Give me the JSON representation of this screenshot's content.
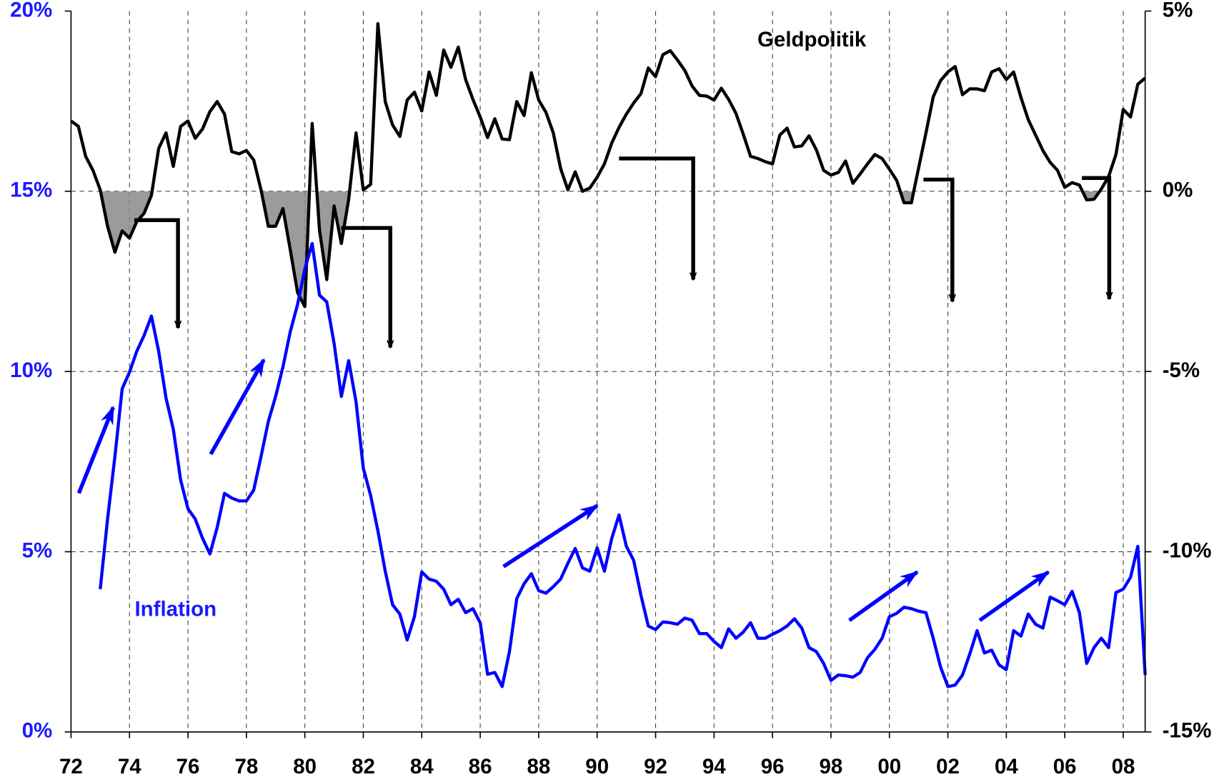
{
  "chart_data": {
    "type": "line",
    "x": [
      1972,
      1972.25,
      1972.5,
      1972.75,
      1973,
      1973.25,
      1973.5,
      1973.75,
      1974,
      1974.25,
      1974.5,
      1974.75,
      1975,
      1975.25,
      1975.5,
      1975.75,
      1976,
      1976.25,
      1976.5,
      1976.75,
      1977,
      1977.25,
      1977.5,
      1977.75,
      1978,
      1978.25,
      1978.5,
      1978.75,
      1979,
      1979.25,
      1979.5,
      1979.75,
      1980,
      1980.25,
      1980.5,
      1980.75,
      1981,
      1981.25,
      1981.5,
      1981.75,
      1982,
      1982.25,
      1982.5,
      1982.75,
      1983,
      1983.25,
      1983.5,
      1983.75,
      1984,
      1984.25,
      1984.5,
      1984.75,
      1985,
      1985.25,
      1985.5,
      1985.75,
      1986,
      1986.25,
      1986.5,
      1986.75,
      1987,
      1987.25,
      1987.5,
      1987.75,
      1988,
      1988.25,
      1988.5,
      1988.75,
      1989,
      1989.25,
      1989.5,
      1989.75,
      1990,
      1990.25,
      1990.5,
      1990.75,
      1991,
      1991.25,
      1991.5,
      1991.75,
      1992,
      1992.25,
      1992.5,
      1992.75,
      1993,
      1993.25,
      1993.5,
      1993.75,
      1994,
      1994.25,
      1994.5,
      1994.75,
      1995,
      1995.25,
      1995.5,
      1995.75,
      1996,
      1996.25,
      1996.5,
      1996.75,
      1997,
      1997.25,
      1997.5,
      1997.75,
      1998,
      1998.25,
      1998.5,
      1998.75,
      1999,
      1999.25,
      1999.5,
      1999.75,
      2000,
      2000.25,
      2000.5,
      2000.75,
      2001,
      2001.25,
      2001.5,
      2001.75,
      2002,
      2002.25,
      2002.5,
      2002.75,
      2003,
      2003.25,
      2003.5,
      2003.75,
      2004,
      2004.25,
      2004.5,
      2004.75,
      2005,
      2005.25,
      2005.5,
      2005.75,
      2006,
      2006.25,
      2006.5,
      2006.75,
      2007,
      2007.25,
      2007.5,
      2007.75,
      2008,
      2008.25,
      2008.5,
      2008.75
    ],
    "series": [
      {
        "name": "Geldpolitik",
        "color": "#000000",
        "axis": "y2",
        "values": [
          1.95,
          1.8,
          0.97,
          0.58,
          0.04,
          -0.97,
          -1.69,
          -1.1,
          -1.3,
          -0.84,
          -0.61,
          -0.11,
          1.19,
          1.62,
          0.69,
          1.8,
          1.95,
          1.47,
          1.73,
          2.21,
          2.49,
          2.14,
          1.1,
          1.04,
          1.13,
          0.87,
          0.04,
          -0.97,
          -0.97,
          -0.48,
          -1.62,
          -2.81,
          -3.2,
          1.88,
          -1.08,
          -2.45,
          -0.41,
          -1.45,
          -0.22,
          1.62,
          0.04,
          0.19,
          4.65,
          2.49,
          1.84,
          1.52,
          2.53,
          2.75,
          2.23,
          3.31,
          2.66,
          3.92,
          3.44,
          4.0,
          3.1,
          2.55,
          2.06,
          1.49,
          2.01,
          1.45,
          1.43,
          2.49,
          2.1,
          3.29,
          2.53,
          2.19,
          1.62,
          0.63,
          0.04,
          0.54,
          0.0,
          0.09,
          0.39,
          0.76,
          1.34,
          1.77,
          2.14,
          2.45,
          2.71,
          3.42,
          3.18,
          3.79,
          3.9,
          3.64,
          3.35,
          2.92,
          2.66,
          2.64,
          2.53,
          2.86,
          2.55,
          2.16,
          1.58,
          0.97,
          0.91,
          0.82,
          0.76,
          1.56,
          1.75,
          1.23,
          1.26,
          1.54,
          1.15,
          0.58,
          0.45,
          0.52,
          0.84,
          0.22,
          0.48,
          0.76,
          1.02,
          0.91,
          0.61,
          0.3,
          -0.32,
          -0.32,
          0.65,
          1.62,
          2.62,
          3.07,
          3.31,
          3.46,
          2.68,
          2.84,
          2.84,
          2.79,
          3.31,
          3.4,
          3.1,
          3.31,
          2.6,
          1.99,
          1.56,
          1.13,
          0.8,
          0.58,
          0.11,
          0.24,
          0.17,
          -0.24,
          -0.22,
          0.06,
          0.41,
          1.02,
          2.27,
          2.06,
          2.97,
          3.14
        ]
      },
      {
        "name": "Inflation",
        "color": "#0000ff",
        "values": [
          null,
          null,
          null,
          null,
          3.96,
          5.91,
          7.64,
          9.52,
          9.98,
          10.56,
          11.0,
          11.54,
          10.56,
          9.26,
          8.4,
          6.99,
          6.19,
          5.91,
          5.37,
          4.94,
          5.67,
          6.62,
          6.49,
          6.41,
          6.41,
          6.71,
          7.64,
          8.61,
          9.31,
          10.13,
          11.1,
          11.86,
          12.84,
          13.55,
          12.12,
          11.93,
          10.78,
          9.31,
          10.3,
          9.16,
          7.32,
          6.56,
          5.58,
          4.46,
          3.53,
          3.27,
          2.55,
          3.2,
          4.44,
          4.24,
          4.18,
          3.96,
          3.53,
          3.68,
          3.31,
          3.42,
          3.03,
          1.6,
          1.65,
          1.26,
          2.23,
          3.7,
          4.11,
          4.39,
          3.92,
          3.85,
          4.03,
          4.24,
          4.68,
          5.09,
          4.55,
          4.46,
          5.11,
          4.46,
          5.37,
          6.02,
          5.15,
          4.76,
          3.79,
          2.94,
          2.84,
          3.05,
          3.03,
          2.99,
          3.16,
          3.1,
          2.73,
          2.73,
          2.51,
          2.34,
          2.86,
          2.6,
          2.77,
          3.03,
          2.6,
          2.6,
          2.71,
          2.81,
          2.94,
          3.14,
          2.88,
          2.34,
          2.23,
          1.9,
          1.43,
          1.58,
          1.56,
          1.52,
          1.65,
          2.06,
          2.29,
          2.6,
          3.2,
          3.29,
          3.46,
          3.42,
          3.35,
          3.31,
          2.6,
          1.8,
          1.26,
          1.3,
          1.58,
          2.16,
          2.81,
          2.19,
          2.27,
          1.86,
          1.73,
          2.81,
          2.66,
          3.27,
          2.99,
          2.88,
          3.74,
          3.64,
          3.53,
          3.9,
          3.31,
          1.9,
          2.34,
          2.6,
          2.34,
          3.87,
          3.96,
          4.29,
          5.15,
          1.58
        ]
      }
    ],
    "xlim": [
      1972,
      2008.75
    ],
    "xticks": [
      {
        "value": 1972,
        "label": "72"
      },
      {
        "value": 1974,
        "label": "74"
      },
      {
        "value": 1976,
        "label": "76"
      },
      {
        "value": 1978,
        "label": "78"
      },
      {
        "value": 1980,
        "label": "80"
      },
      {
        "value": 1982,
        "label": "82"
      },
      {
        "value": 1984,
        "label": "84"
      },
      {
        "value": 1986,
        "label": "86"
      },
      {
        "value": 1988,
        "label": "88"
      },
      {
        "value": 1990,
        "label": "90"
      },
      {
        "value": 1992,
        "label": "92"
      },
      {
        "value": 1994,
        "label": "94"
      },
      {
        "value": 1996,
        "label": "96"
      },
      {
        "value": 1998,
        "label": "98"
      },
      {
        "value": 2000,
        "label": "00"
      },
      {
        "value": 2002,
        "label": "02"
      },
      {
        "value": 2004,
        "label": "04"
      },
      {
        "value": 2006,
        "label": "06"
      },
      {
        "value": 2008,
        "label": "08"
      }
    ],
    "ylim": [
      0,
      20
    ],
    "yticks": [
      {
        "value": 0,
        "label": "0%"
      },
      {
        "value": 5,
        "label": "5%"
      },
      {
        "value": 10,
        "label": "10%"
      },
      {
        "value": 15,
        "label": "15%"
      },
      {
        "value": 20,
        "label": "20%"
      }
    ],
    "y2lim": [
      -15,
      5
    ],
    "y2ticks": [
      {
        "value": -15,
        "label": "-15%"
      },
      {
        "value": -10,
        "label": "-10%"
      },
      {
        "value": -5,
        "label": "-5%"
      },
      {
        "value": 0,
        "label": "0%"
      },
      {
        "value": 5,
        "label": "5%"
      }
    ],
    "grid": true,
    "yaxis_color": "#1a1aff"
  }
}
